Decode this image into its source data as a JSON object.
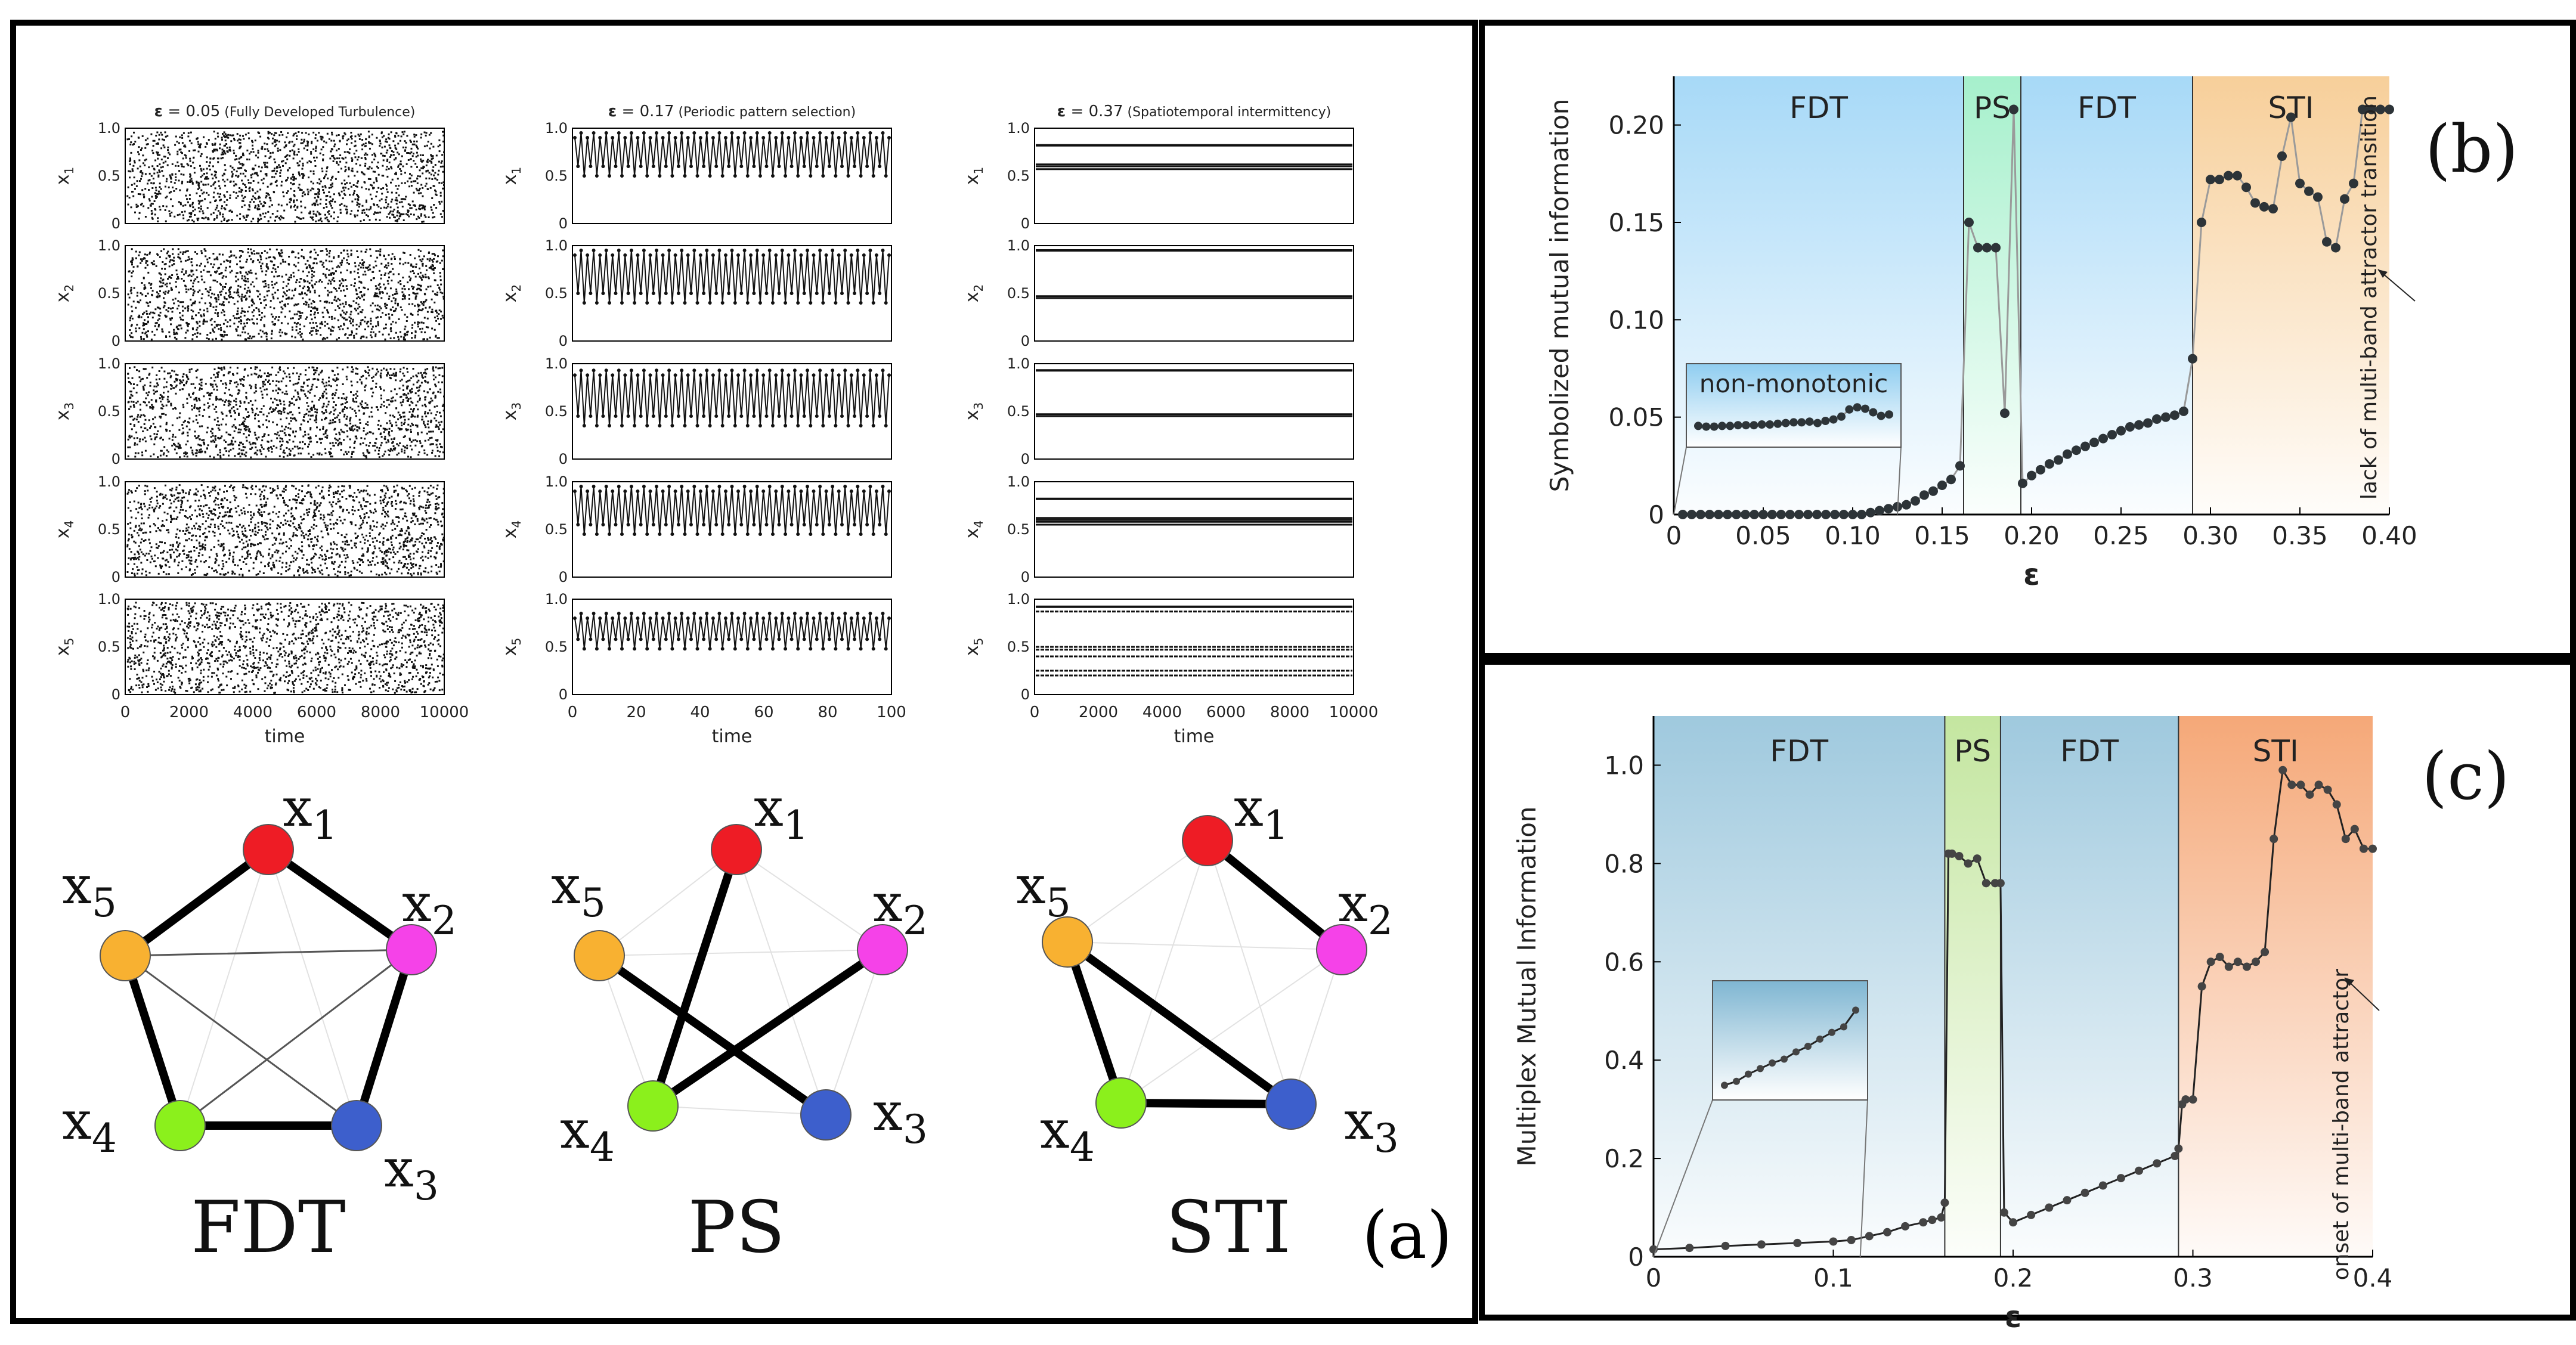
{
  "panel_a": {
    "label": "(a)",
    "time_series": [
      {
        "header_prefix": "ε",
        "header_value": " = 0.05",
        "header_note": " (Fully Developed Turbulence)",
        "xlabel": "time",
        "xticks": [
          "0",
          "2000",
          "4000",
          "6000",
          "8000",
          "10000"
        ],
        "pattern": "chaos"
      },
      {
        "header_prefix": "ε",
        "header_value": " = 0.17",
        "header_note": " (Periodic pattern selection)",
        "xlabel": "time",
        "xticks": [
          "0",
          "20",
          "40",
          "60",
          "80",
          "100"
        ],
        "pattern": "periodic"
      },
      {
        "header_prefix": "ε",
        "header_value": " = 0.37",
        "header_note": " (Spatiotemporal intermittency)",
        "xlabel": "time",
        "xticks": [
          "0",
          "2000",
          "4000",
          "6000",
          "8000",
          "10000"
        ],
        "pattern": "sti"
      }
    ],
    "series_labels": [
      "x1",
      "x2",
      "x3",
      "x4",
      "x5"
    ],
    "yticks": [
      "0",
      "0.5",
      "1.0"
    ],
    "networks": [
      {
        "title": "FDT",
        "edges": [
          [
            0,
            1,
            "thick"
          ],
          [
            1,
            2,
            "thick"
          ],
          [
            2,
            3,
            "thick"
          ],
          [
            3,
            4,
            "thick"
          ],
          [
            4,
            0,
            "thick"
          ],
          [
            4,
            1,
            "thin"
          ],
          [
            4,
            2,
            "thin"
          ],
          [
            1,
            3,
            "thin"
          ],
          [
            0,
            2,
            "faint"
          ],
          [
            0,
            3,
            "faint"
          ]
        ]
      },
      {
        "title": "PS",
        "edges": [
          [
            0,
            3,
            "thick"
          ],
          [
            4,
            2,
            "thick"
          ],
          [
            3,
            1,
            "thick"
          ],
          [
            4,
            1,
            "faint"
          ],
          [
            0,
            2,
            "faint"
          ],
          [
            2,
            3,
            "faint"
          ],
          [
            4,
            3,
            "faint"
          ],
          [
            0,
            1,
            "faint"
          ],
          [
            1,
            2,
            "faint"
          ],
          [
            4,
            0,
            "faint"
          ]
        ]
      },
      {
        "title": "STI",
        "edges": [
          [
            0,
            1,
            "thick"
          ],
          [
            4,
            2,
            "thick"
          ],
          [
            4,
            3,
            "thick"
          ],
          [
            3,
            2,
            "thick"
          ],
          [
            4,
            1,
            "faint"
          ],
          [
            0,
            2,
            "faint"
          ],
          [
            0,
            3,
            "faint"
          ],
          [
            4,
            0,
            "faint"
          ],
          [
            1,
            2,
            "faint"
          ],
          [
            1,
            3,
            "faint"
          ]
        ]
      }
    ],
    "node_labels": [
      "x1",
      "x2",
      "x3",
      "x4",
      "x5"
    ],
    "node_colors": [
      "#ee1c25",
      "#f542e8",
      "#3d5fcc",
      "#8bf01c",
      "#f8b131"
    ]
  },
  "chart_data": [
    {
      "id": "b",
      "type": "scatter",
      "title": "(b)",
      "xlabel": "ε",
      "ylabel": "Symbolized mutual information",
      "xlim": [
        0,
        0.4
      ],
      "ylim": [
        0,
        0.225
      ],
      "xticks": [
        "0",
        "0.05",
        "0.10",
        "0.15",
        "0.20",
        "0.25",
        "0.30",
        "0.35",
        "0.40"
      ],
      "yticks": [
        "0",
        "0.05",
        "0.10",
        "0.15",
        "0.20"
      ],
      "regions": [
        {
          "label": "FDT",
          "from": 0,
          "to": 0.162,
          "color": "#a7d9f7"
        },
        {
          "label": "PS",
          "from": 0.162,
          "to": 0.194,
          "color": "#a6f0cc"
        },
        {
          "label": "FDT",
          "from": 0.194,
          "to": 0.29,
          "color": "#a7d9f7"
        },
        {
          "label": "STI",
          "from": 0.29,
          "to": 0.4,
          "color": "#f7cf9a"
        }
      ],
      "inset_label": "non-monotonic",
      "annotation": "lack of multi-band attractor transition",
      "x": [
        0.005,
        0.01,
        0.015,
        0.02,
        0.025,
        0.03,
        0.035,
        0.04,
        0.045,
        0.05,
        0.055,
        0.06,
        0.065,
        0.07,
        0.075,
        0.08,
        0.085,
        0.09,
        0.095,
        0.1,
        0.105,
        0.11,
        0.115,
        0.12,
        0.125,
        0.13,
        0.135,
        0.14,
        0.145,
        0.15,
        0.155,
        0.16,
        0.165,
        0.17,
        0.175,
        0.18,
        0.185,
        0.19,
        0.195,
        0.2,
        0.205,
        0.21,
        0.215,
        0.22,
        0.225,
        0.23,
        0.235,
        0.24,
        0.245,
        0.25,
        0.255,
        0.26,
        0.265,
        0.27,
        0.275,
        0.28,
        0.285,
        0.29,
        0.295,
        0.3,
        0.305,
        0.31,
        0.315,
        0.32,
        0.325,
        0.33,
        0.335,
        0.34,
        0.345,
        0.35,
        0.355,
        0.36,
        0.365,
        0.37,
        0.375,
        0.38,
        0.385,
        0.39,
        0.395,
        0.4
      ],
      "y": [
        0,
        0,
        0,
        0,
        0,
        0,
        0,
        0,
        0,
        0,
        0,
        0,
        0,
        0,
        0,
        0,
        0,
        0,
        0,
        0,
        0,
        0.001,
        0.002,
        0.003,
        0.004,
        0.005,
        0.007,
        0.01,
        0.012,
        0.015,
        0.018,
        0.025,
        0.15,
        0.137,
        0.137,
        0.137,
        0.052,
        0.208,
        0.016,
        0.02,
        0.023,
        0.026,
        0.028,
        0.031,
        0.033,
        0.035,
        0.037,
        0.039,
        0.041,
        0.043,
        0.045,
        0.046,
        0.047,
        0.049,
        0.05,
        0.051,
        0.053,
        0.08,
        0.15,
        0.172,
        0.172,
        0.174,
        0.174,
        0.168,
        0.16,
        0.158,
        0.157,
        0.184,
        0.204,
        0.17,
        0.166,
        0.163,
        0.14,
        0.137,
        0.162,
        0.17,
        0.208,
        0.208,
        0.208,
        0.208
      ],
      "inset_x": [
        0.005,
        0.01,
        0.015,
        0.02,
        0.025,
        0.03,
        0.035,
        0.04,
        0.045,
        0.05,
        0.055,
        0.06,
        0.065,
        0.07,
        0.075,
        0.08,
        0.085,
        0.09,
        0.095,
        0.1,
        0.105,
        0.11,
        0.115,
        0.12,
        0.125
      ],
      "inset_y": [
        0.0426,
        0.0424,
        0.0424,
        0.0426,
        0.0426,
        0.0428,
        0.0428,
        0.0428,
        0.043,
        0.043,
        0.0432,
        0.0434,
        0.0436,
        0.0436,
        0.0438,
        0.0434,
        0.044,
        0.0444,
        0.0452,
        0.0472,
        0.0478,
        0.0474,
        0.0464,
        0.0454,
        0.0458
      ]
    },
    {
      "id": "c",
      "type": "line",
      "title": "(c)",
      "xlabel": "ε",
      "ylabel": "Multiplex Mutual Information",
      "xlim": [
        0,
        0.4
      ],
      "ylim": [
        0,
        1.1
      ],
      "xticks": [
        "0",
        "0.1",
        "0.2",
        "0.3",
        "0.4"
      ],
      "yticks": [
        "0",
        "0.2",
        "0.4",
        "0.6",
        "0.8",
        "1.0"
      ],
      "regions": [
        {
          "label": "FDT",
          "from": 0,
          "to": 0.162,
          "color": "#9fc9de"
        },
        {
          "label": "PS",
          "from": 0.162,
          "to": 0.193,
          "color": "#c4e6a0"
        },
        {
          "label": "FDT",
          "from": 0.193,
          "to": 0.292,
          "color": "#9fc9de"
        },
        {
          "label": "STI",
          "from": 0.292,
          "to": 0.4,
          "color": "#f5a878"
        }
      ],
      "annotation": "onset of multi-band attractor",
      "x": [
        0,
        0.02,
        0.04,
        0.06,
        0.08,
        0.1,
        0.11,
        0.12,
        0.13,
        0.14,
        0.15,
        0.155,
        0.16,
        0.162,
        0.164,
        0.166,
        0.17,
        0.175,
        0.18,
        0.185,
        0.19,
        0.193,
        0.195,
        0.2,
        0.21,
        0.22,
        0.23,
        0.24,
        0.25,
        0.26,
        0.27,
        0.28,
        0.29,
        0.292,
        0.294,
        0.296,
        0.3,
        0.305,
        0.31,
        0.315,
        0.32,
        0.325,
        0.33,
        0.335,
        0.34,
        0.345,
        0.35,
        0.355,
        0.36,
        0.365,
        0.37,
        0.375,
        0.38,
        0.385,
        0.39,
        0.395,
        0.4
      ],
      "y": [
        0.015,
        0.018,
        0.022,
        0.025,
        0.028,
        0.031,
        0.034,
        0.042,
        0.05,
        0.062,
        0.07,
        0.075,
        0.08,
        0.11,
        0.82,
        0.82,
        0.815,
        0.8,
        0.81,
        0.76,
        0.76,
        0.76,
        0.09,
        0.07,
        0.085,
        0.1,
        0.115,
        0.13,
        0.145,
        0.16,
        0.175,
        0.19,
        0.205,
        0.22,
        0.31,
        0.32,
        0.32,
        0.55,
        0.6,
        0.61,
        0.59,
        0.6,
        0.59,
        0.6,
        0.62,
        0.85,
        0.99,
        0.96,
        0.96,
        0.94,
        0.96,
        0.95,
        0.92,
        0.85,
        0.87,
        0.83,
        0.83
      ],
      "inset_x": [
        0.005,
        0.015,
        0.025,
        0.035,
        0.045,
        0.055,
        0.065,
        0.075,
        0.085,
        0.095,
        0.105,
        0.115
      ],
      "inset_y": [
        0.0155,
        0.0162,
        0.0175,
        0.0185,
        0.0195,
        0.0202,
        0.0215,
        0.0225,
        0.0238,
        0.025,
        0.026,
        0.029
      ]
    }
  ]
}
